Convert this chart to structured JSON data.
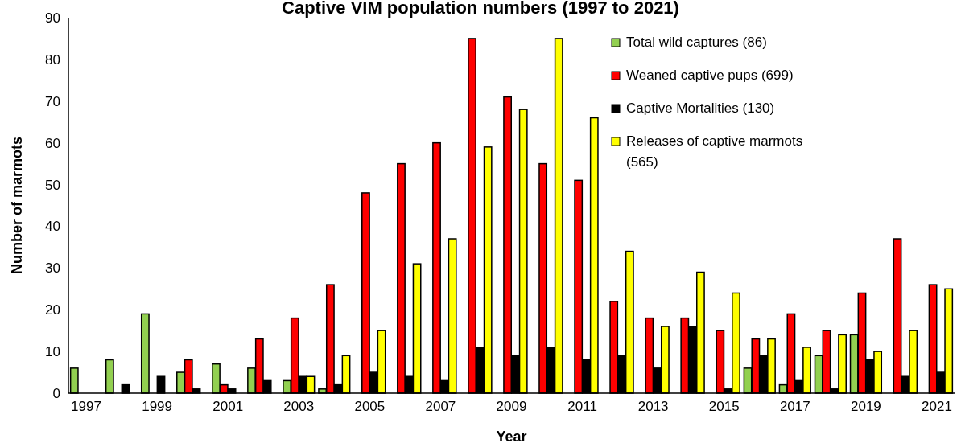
{
  "chart_data": {
    "type": "bar",
    "title": "Captive VIM population numbers (1997 to 2021)",
    "xlabel": "Year",
    "ylabel": "Number of marmots",
    "categories": [
      "1997",
      null,
      "1999",
      null,
      "2001",
      null,
      "2003",
      null,
      "2005",
      null,
      "2007",
      null,
      "2009",
      null,
      "2011",
      null,
      "2013",
      null,
      "2015",
      null,
      "2017",
      null,
      "2019",
      null,
      "2021"
    ],
    "series": [
      {
        "name": "Total wild captures (86)",
        "color": "#92d050",
        "values": [
          6,
          8,
          19,
          5,
          7,
          6,
          3,
          1,
          0,
          0,
          0,
          0,
          0,
          0,
          0,
          0,
          0,
          0,
          0,
          6,
          2,
          9,
          14,
          0,
          0
        ]
      },
      {
        "name": "Weaned captive pups (699)",
        "color": "#ff0000",
        "values": [
          0,
          0,
          0,
          8,
          2,
          13,
          18,
          26,
          48,
          55,
          60,
          85,
          71,
          55,
          51,
          22,
          18,
          18,
          15,
          13,
          19,
          15,
          24,
          37,
          26
        ]
      },
      {
        "name": "Captive Mortalities (130)",
        "color": "#000000",
        "values": [
          0,
          2,
          4,
          1,
          1,
          3,
          4,
          2,
          5,
          4,
          3,
          11,
          9,
          11,
          8,
          9,
          6,
          16,
          1,
          9,
          3,
          1,
          8,
          4,
          5
        ]
      },
      {
        "name": "Releases of captive marmots (565)",
        "color": "#ffff00",
        "values": [
          0,
          0,
          0,
          0,
          0,
          0,
          4,
          9,
          15,
          31,
          37,
          59,
          68,
          85,
          66,
          34,
          16,
          29,
          24,
          13,
          11,
          14,
          10,
          15,
          25
        ]
      }
    ],
    "ylim": [
      0,
      90
    ],
    "yticks": [
      0,
      10,
      20,
      30,
      40,
      50,
      60,
      70,
      80,
      90
    ],
    "grid": false,
    "legend": "top right"
  }
}
